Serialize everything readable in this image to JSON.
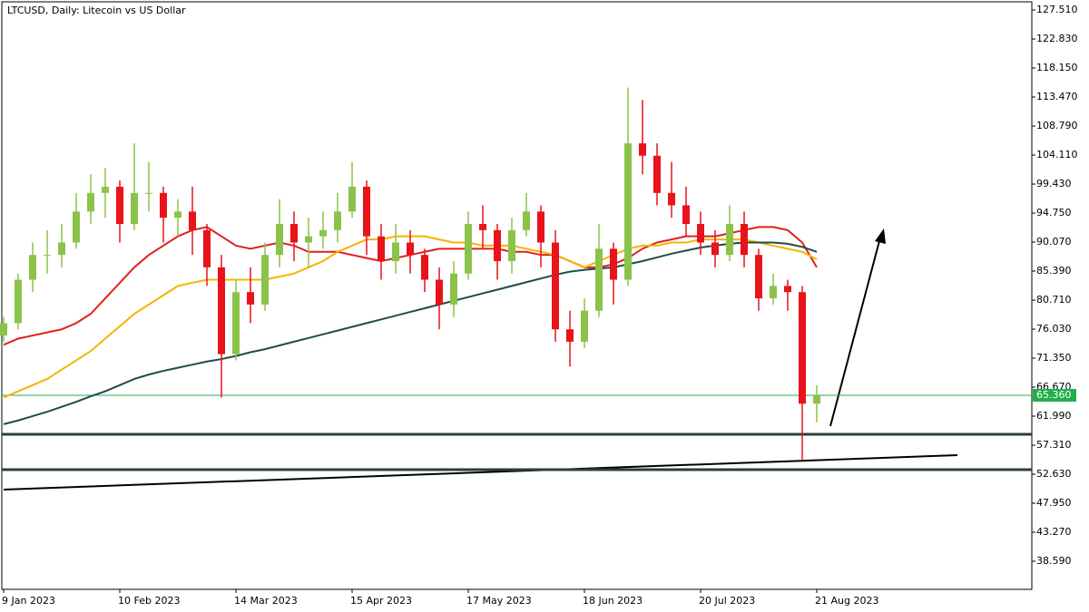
{
  "chart_data": {
    "type": "candlestick",
    "title": "LTCUSD, Daily:  Litecoin vs US Dollar",
    "categories": [
      "9 Jan 2023",
      null,
      null,
      null,
      null,
      null,
      null,
      null,
      "10 Feb 2023",
      null,
      null,
      null,
      null,
      null,
      null,
      null,
      "14 Mar 2023",
      null,
      null,
      null,
      null,
      null,
      null,
      null,
      "15 Apr 2023",
      null,
      null,
      null,
      null,
      null,
      null,
      null,
      "17 May 2023",
      null,
      null,
      null,
      null,
      null,
      null,
      null,
      "18 Jun 2023",
      null,
      null,
      null,
      null,
      null,
      null,
      null,
      "20 Jul 2023",
      null,
      null,
      null,
      null,
      null,
      null,
      null,
      "21 Aug 2023"
    ],
    "open": [
      75,
      77,
      84,
      88,
      88,
      90,
      95,
      98,
      99,
      93,
      98,
      98,
      94,
      95,
      92,
      86,
      72,
      82,
      80,
      88,
      93,
      90,
      91,
      92,
      95,
      99,
      91,
      87,
      90,
      88,
      84,
      80,
      85,
      93,
      92,
      87,
      92,
      95,
      90,
      76,
      74,
      79,
      89,
      84,
      106,
      104,
      98,
      96,
      93,
      90,
      88,
      93,
      88,
      81,
      83,
      82,
      64
    ],
    "high": [
      78,
      85,
      90,
      92,
      93,
      98,
      101,
      102,
      100,
      106,
      103,
      99,
      97,
      99,
      93,
      88,
      84,
      86,
      90,
      97,
      95,
      94,
      95,
      98,
      103,
      100,
      93,
      93,
      92,
      89,
      86,
      87,
      95,
      96,
      93,
      94,
      98,
      96,
      92,
      79,
      81,
      93,
      90,
      115,
      113,
      106,
      103,
      99,
      95,
      92,
      96,
      95,
      89,
      85,
      84,
      83,
      67
    ],
    "low": [
      74,
      76,
      82,
      85,
      86,
      89,
      93,
      94,
      90,
      92,
      95,
      90,
      91,
      88,
      83,
      65,
      71,
      77,
      79,
      86,
      87,
      86,
      89,
      90,
      94,
      88,
      84,
      85,
      85,
      82,
      76,
      78,
      84,
      89,
      84,
      85,
      91,
      86,
      74,
      70,
      73,
      78,
      80,
      83,
      101,
      96,
      94,
      91,
      88,
      86,
      87,
      86,
      79,
      80,
      79,
      55,
      61
    ],
    "close": [
      77,
      84,
      88,
      88,
      90,
      95,
      98,
      99,
      93,
      98,
      98,
      94,
      95,
      92,
      86,
      72,
      82,
      80,
      88,
      93,
      90,
      91,
      92,
      95,
      99,
      91,
      87,
      90,
      88,
      84,
      80,
      85,
      93,
      92,
      87,
      92,
      95,
      90,
      76,
      74,
      79,
      89,
      84,
      106,
      104,
      98,
      96,
      93,
      90,
      88,
      93,
      88,
      81,
      83,
      82,
      64,
      65.36
    ],
    "up_color": "#8bc34a",
    "down_color": "#e8131b",
    "lines": [
      {
        "color": "#e0201b",
        "values": [
          73.5,
          74.5,
          75,
          75.5,
          76,
          77,
          78.5,
          81,
          83.5,
          86,
          88,
          89.5,
          91,
          92,
          92.5,
          91,
          89.5,
          89,
          89.5,
          90,
          89.5,
          88.5,
          88.5,
          88.5,
          88,
          87.5,
          87,
          87.5,
          88,
          88.5,
          89,
          89,
          89,
          89,
          89,
          88.5,
          88.5,
          88,
          88,
          87,
          86,
          86,
          86.5,
          87.5,
          89,
          90,
          90.5,
          91,
          91,
          91,
          91.5,
          92,
          92.5,
          92.5,
          92,
          90,
          86
        ]
      },
      {
        "color": "#f5b400",
        "values": [
          65,
          66,
          67,
          68,
          69.5,
          71,
          72.5,
          74.5,
          76.5,
          78.5,
          80,
          81.5,
          83,
          83.5,
          84,
          84,
          84,
          84,
          84,
          84.5,
          85,
          86,
          87,
          88.5,
          89.5,
          90.5,
          90.5,
          91,
          91,
          91,
          90.5,
          90,
          90,
          89.5,
          89.5,
          89.5,
          89,
          88.5,
          88,
          87,
          86,
          87,
          88,
          89,
          89.5,
          89.5,
          90,
          90,
          90.5,
          90.5,
          90.5,
          90.5,
          90,
          89.5,
          89,
          88.5,
          87.3
        ]
      },
      {
        "color": "#1d4e43",
        "values": [
          60.7,
          61.3,
          62,
          62.7,
          63.5,
          64.3,
          65.2,
          66,
          67,
          68,
          68.7,
          69.3,
          69.8,
          70.3,
          70.8,
          71.2,
          71.7,
          72.3,
          72.8,
          73.4,
          74,
          74.6,
          75.2,
          75.8,
          76.4,
          77,
          77.6,
          78.2,
          78.8,
          79.4,
          80,
          80.6,
          81.2,
          81.8,
          82.4,
          83,
          83.6,
          84.2,
          84.8,
          85.3,
          85.6,
          85.8,
          86,
          86.5,
          87,
          87.6,
          88.2,
          88.7,
          89.2,
          89.5,
          89.8,
          90,
          90,
          90,
          89.8,
          89.3,
          88.5
        ]
      }
    ],
    "levels": {
      "color": "#2a3f3c",
      "values": [
        59.07,
        53.36
      ]
    },
    "last_price": {
      "value": 65.36,
      "label": "65.360",
      "color": "#1fb04a"
    },
    "ylim": [
      34.06,
      128.83
    ],
    "yticks": [
      {
        "value": 127.51,
        "label": "127.510"
      },
      {
        "value": 122.83,
        "label": "122.830"
      },
      {
        "value": 118.15,
        "label": "118.150"
      },
      {
        "value": 113.47,
        "label": "113.470"
      },
      {
        "value": 108.79,
        "label": "108.790"
      },
      {
        "value": 104.11,
        "label": "104.110"
      },
      {
        "value": 99.43,
        "label": "99.430"
      },
      {
        "value": 94.75,
        "label": "94.750"
      },
      {
        "value": 90.07,
        "label": "90.070"
      },
      {
        "value": 85.39,
        "label": "85.390"
      },
      {
        "value": 80.71,
        "label": "80.710"
      },
      {
        "value": 76.03,
        "label": "76.030"
      },
      {
        "value": 71.35,
        "label": "71.350"
      },
      {
        "value": 66.67,
        "label": "66.670"
      },
      {
        "value": 61.99,
        "label": "61.990"
      },
      {
        "value": 57.31,
        "label": "57.310"
      },
      {
        "value": 52.63,
        "label": "52.630"
      },
      {
        "value": 47.95,
        "label": "47.950"
      },
      {
        "value": 43.27,
        "label": "43.270"
      },
      {
        "value": 38.59,
        "label": "38.590"
      }
    ]
  }
}
